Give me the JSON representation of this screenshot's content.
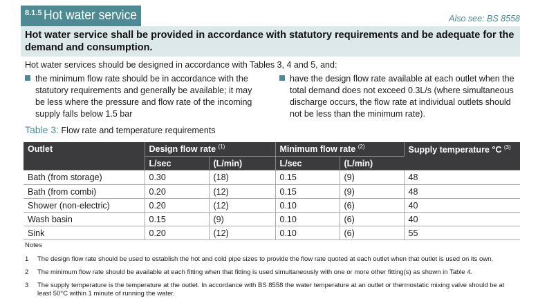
{
  "section": {
    "number": "8.1.5",
    "title": "Hot water service",
    "also_see": "Also see: BS 8558"
  },
  "banner": "Hot water service shall be provided in accordance with statutory requirements and be adequate for the demand and consumption.",
  "intro": "Hot water services should be designed in accordance with Tables 3, 4 and 5, and:",
  "bullets": [
    "the minimum flow rate should be in accordance with the statutory requirements and generally be available; it may be less where the pressure and flow rate of the incoming supply falls below 1.5 bar",
    "have the design flow rate available at each outlet when the total demand does not exceed 0.3L/s (where simultaneous discharge occurs, the flow rate at individual outlets should not be less than the minimum rate)."
  ],
  "table": {
    "caption_label": "Table 3:",
    "caption_text": "Flow rate and temperature requirements",
    "headers": {
      "outlet": "Outlet",
      "design": "Design flow rate",
      "design_sup": "(1)",
      "minimum": "Minimum flow rate",
      "minimum_sup": "(2)",
      "supply": "Supply temperature °C",
      "supply_sup": "(3)",
      "lsec": "L/sec",
      "lmin": "(L/min)"
    },
    "rows": [
      {
        "outlet": "Bath (from storage)",
        "design_lsec": "0.30",
        "design_lmin": "(18)",
        "min_lsec": "0.15",
        "min_lmin": "(9)",
        "temp": "48"
      },
      {
        "outlet": "Bath (from combi)",
        "design_lsec": "0.20",
        "design_lmin": "(12)",
        "min_lsec": "0.15",
        "min_lmin": "(9)",
        "temp": "48"
      },
      {
        "outlet": "Shower (non-electric)",
        "design_lsec": "0.20",
        "design_lmin": "(12)",
        "min_lsec": "0.10",
        "min_lmin": "(6)",
        "temp": "40"
      },
      {
        "outlet": "Wash basin",
        "design_lsec": "0.15",
        "design_lmin": "(9)",
        "min_lsec": "0.10",
        "min_lmin": "(6)",
        "temp": "40"
      },
      {
        "outlet": "Sink",
        "design_lsec": "0.20",
        "design_lmin": "(12)",
        "min_lsec": "0.10",
        "min_lmin": "(6)",
        "temp": "55"
      }
    ]
  },
  "notes": {
    "title": "Notes",
    "items": [
      {
        "num": "1",
        "text": "The design flow rate should be used to establish the hot and cold pipe sizes to provide the flow rate quoted at each outlet when that outlet is used on its own."
      },
      {
        "num": "2",
        "text": "The minimum flow rate should be available at each fitting when that fitting is used simultaneously with one or more other fitting(s) as shown in Table 4."
      },
      {
        "num": "3",
        "text": "The supply temperature is the temperature at the outlet. In accordance with BS 8558 the water temperature at an outlet or thermostatic mixing valve should be at least 50°C within 1 minute of running the water."
      }
    ]
  }
}
